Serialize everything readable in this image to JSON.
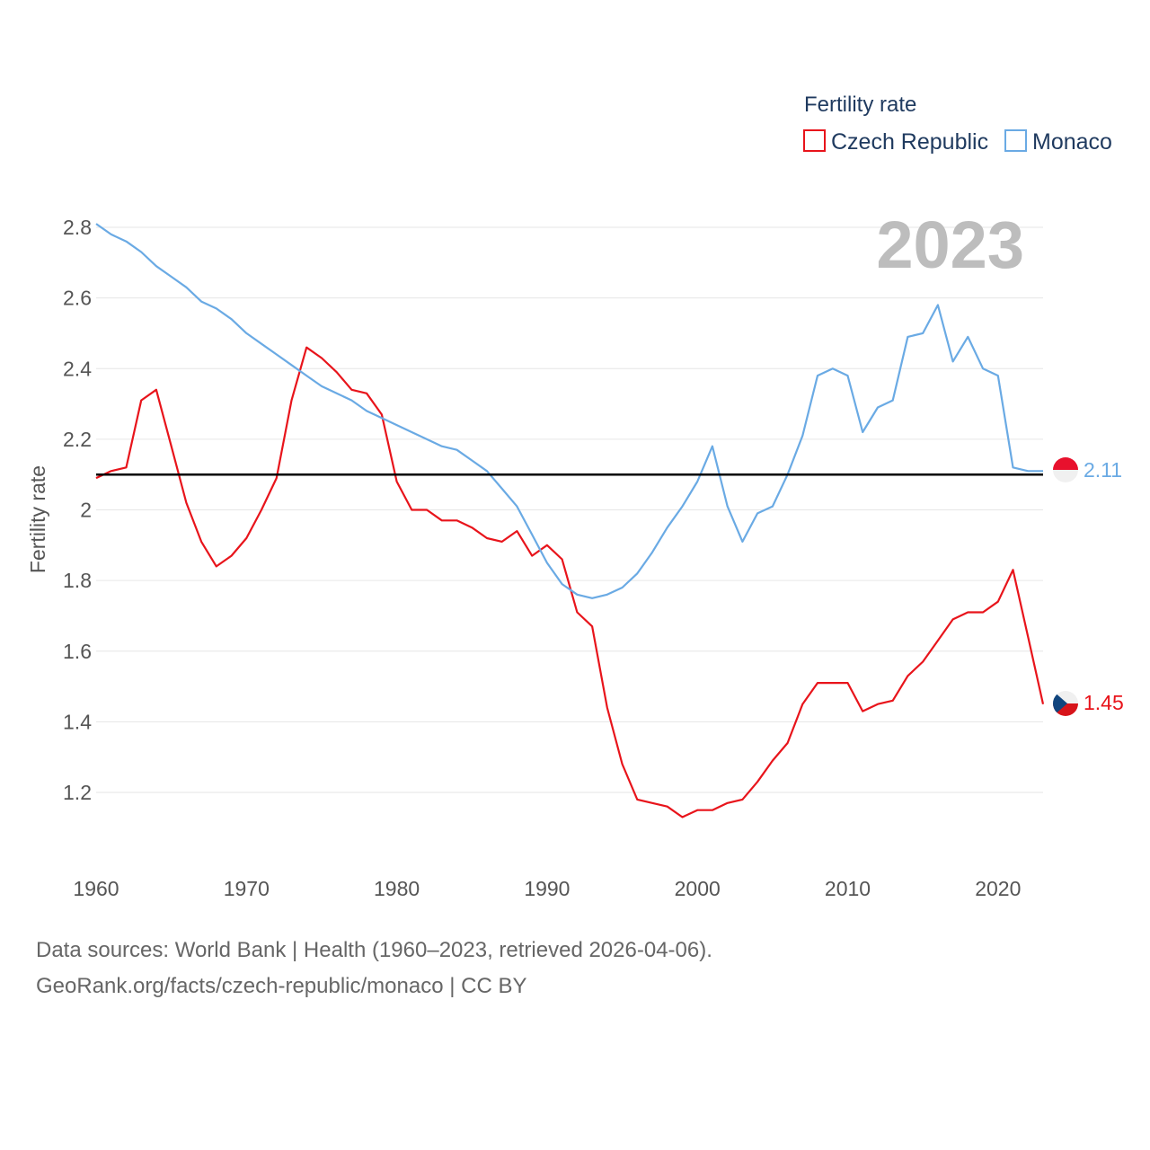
{
  "chart_data": {
    "type": "line",
    "ylabel": "Fertility rate",
    "xlabel": "",
    "year_label": "2023",
    "legend_title": "Fertility rate",
    "legend_position": "top-right",
    "xlim": [
      1960,
      2023
    ],
    "ylim": [
      1.0,
      2.86
    ],
    "x_ticks": [
      1960,
      1970,
      1980,
      1990,
      2000,
      2010,
      2020
    ],
    "y_ticks": [
      1.2,
      1.4,
      1.6,
      1.8,
      2,
      2.2,
      2.4,
      2.6,
      2.8
    ],
    "y_tick_labels": [
      "1.2",
      "1.4",
      "1.6",
      "1.8",
      "2",
      "2.2",
      "2.4",
      "2.6",
      "2.8"
    ],
    "reference_line": 2.1,
    "grid": true,
    "x": [
      1960,
      1961,
      1962,
      1963,
      1964,
      1965,
      1966,
      1967,
      1968,
      1969,
      1970,
      1971,
      1972,
      1973,
      1974,
      1975,
      1976,
      1977,
      1978,
      1979,
      1980,
      1981,
      1982,
      1983,
      1984,
      1985,
      1986,
      1987,
      1988,
      1989,
      1990,
      1991,
      1992,
      1993,
      1994,
      1995,
      1996,
      1997,
      1998,
      1999,
      2000,
      2001,
      2002,
      2003,
      2004,
      2005,
      2006,
      2007,
      2008,
      2009,
      2010,
      2011,
      2012,
      2013,
      2014,
      2015,
      2016,
      2017,
      2018,
      2019,
      2020,
      2021,
      2022,
      2023
    ],
    "series": [
      {
        "name": "Czech Republic",
        "color": "#e8141b",
        "end_label": "1.45",
        "values": [
          2.09,
          2.11,
          2.12,
          2.31,
          2.34,
          2.18,
          2.02,
          1.91,
          1.84,
          1.87,
          1.92,
          2.0,
          2.09,
          2.31,
          2.46,
          2.43,
          2.39,
          2.34,
          2.33,
          2.27,
          2.08,
          2.0,
          2.0,
          1.97,
          1.97,
          1.95,
          1.92,
          1.91,
          1.94,
          1.87,
          1.9,
          1.86,
          1.71,
          1.67,
          1.44,
          1.28,
          1.18,
          1.17,
          1.16,
          1.13,
          1.15,
          1.15,
          1.17,
          1.18,
          1.23,
          1.29,
          1.34,
          1.45,
          1.51,
          1.51,
          1.51,
          1.43,
          1.45,
          1.46,
          1.53,
          1.57,
          1.63,
          1.69,
          1.71,
          1.71,
          1.74,
          1.83,
          1.64,
          1.45
        ]
      },
      {
        "name": "Monaco",
        "color": "#6aaae4",
        "end_label": "2.11",
        "values": [
          2.81,
          2.78,
          2.76,
          2.73,
          2.69,
          2.66,
          2.63,
          2.59,
          2.57,
          2.54,
          2.5,
          2.47,
          2.44,
          2.41,
          2.38,
          2.35,
          2.33,
          2.31,
          2.28,
          2.26,
          2.24,
          2.22,
          2.2,
          2.18,
          2.17,
          2.14,
          2.11,
          2.06,
          2.01,
          1.93,
          1.85,
          1.79,
          1.76,
          1.75,
          1.76,
          1.78,
          1.82,
          1.88,
          1.95,
          2.01,
          2.08,
          2.18,
          2.01,
          1.91,
          1.99,
          2.01,
          2.1,
          2.21,
          2.38,
          2.4,
          2.38,
          2.22,
          2.29,
          2.31,
          2.49,
          2.5,
          2.58,
          2.42,
          2.49,
          2.4,
          2.38,
          2.12,
          2.11,
          2.11
        ]
      }
    ]
  },
  "icons": {
    "czech_flag": "czech-flag-icon",
    "monaco_flag": "monaco-flag-icon"
  },
  "source": {
    "line1": "Data sources: World Bank | Health (1960–2023, retrieved 2026-04-06).",
    "line2": "GeoRank.org/facts/czech-republic/monaco | CC BY"
  }
}
